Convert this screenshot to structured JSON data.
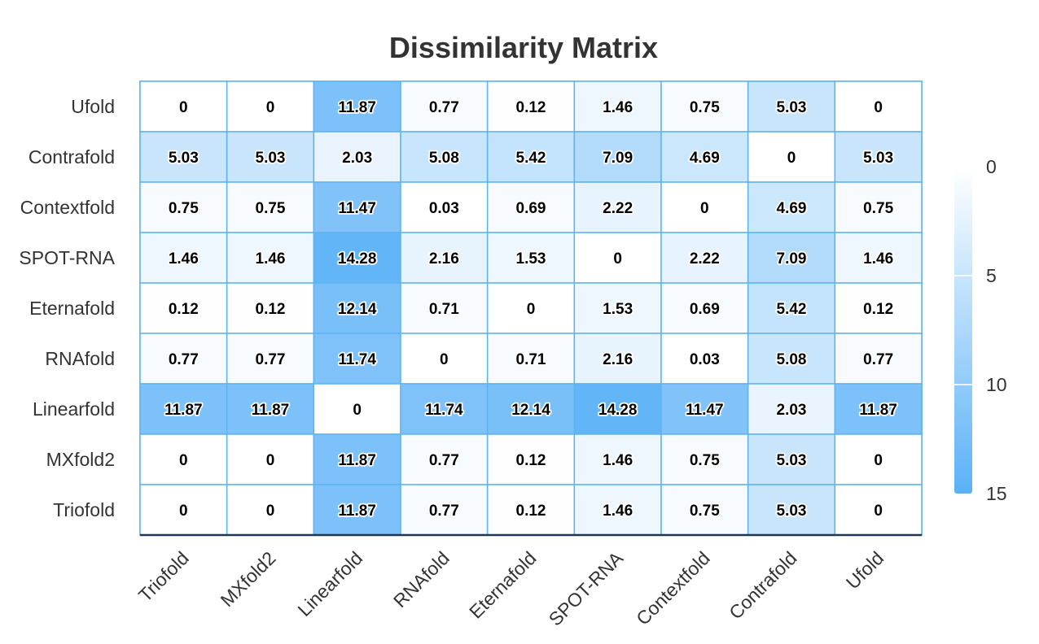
{
  "chart_data": {
    "type": "heatmap",
    "title": "Dissimilarity Matrix",
    "x_categories": [
      "Triofold",
      "MXfold2",
      "Linearfold",
      "RNAfold",
      "Eternafold",
      "SPOT-RNA",
      "Contextfold",
      "Contrafold",
      "Ufold"
    ],
    "y_categories": [
      "Ufold",
      "Contrafold",
      "Contextfold",
      "SPOT-RNA",
      "Eternafold",
      "RNAfold",
      "Linearfold",
      "MXfold2",
      "Triofold"
    ],
    "values": [
      [
        0,
        0,
        11.87,
        0.77,
        0.12,
        1.46,
        0.75,
        5.03,
        0
      ],
      [
        5.03,
        5.03,
        2.03,
        5.08,
        5.42,
        7.09,
        4.69,
        0,
        5.03
      ],
      [
        0.75,
        0.75,
        11.47,
        0.03,
        0.69,
        2.22,
        0,
        4.69,
        0.75
      ],
      [
        1.46,
        1.46,
        14.28,
        2.16,
        1.53,
        0,
        2.22,
        7.09,
        1.46
      ],
      [
        0.12,
        0.12,
        12.14,
        0.71,
        0,
        1.53,
        0.69,
        5.42,
        0.12
      ],
      [
        0.77,
        0.77,
        11.74,
        0,
        0.71,
        2.16,
        0.03,
        5.08,
        0.77
      ],
      [
        11.87,
        11.87,
        0,
        11.74,
        12.14,
        14.28,
        11.47,
        2.03,
        11.87
      ],
      [
        0,
        0,
        11.87,
        0.77,
        0.12,
        1.46,
        0.75,
        5.03,
        0
      ],
      [
        0,
        0,
        11.87,
        0.77,
        0.12,
        1.46,
        0.75,
        5.03,
        0
      ]
    ],
    "color_scale": {
      "min": 0,
      "max": 15,
      "min_color": "#ffffff",
      "max_color": "#5ab1f7",
      "ticks": [
        0,
        5,
        10,
        15
      ]
    },
    "grid_color": "#5eb3ef",
    "legend_position": "right"
  }
}
